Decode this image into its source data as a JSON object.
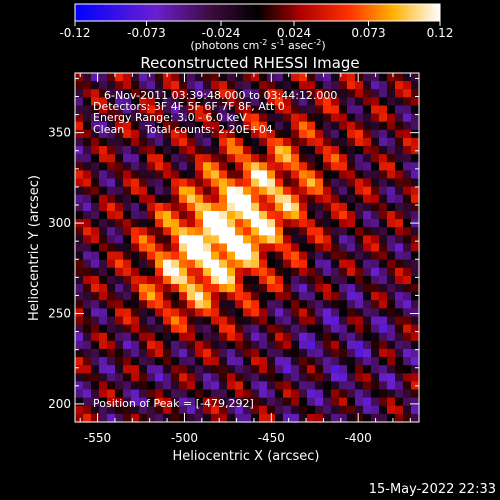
{
  "chart_data": {
    "type": "heatmap",
    "title": "Reconstructed RHESSI Image",
    "xlabel": "Heliocentric X (arcsec)",
    "ylabel": "Heliocentric Y (arcsec)",
    "xlim": [
      -563,
      -365
    ],
    "ylim": [
      190,
      383
    ],
    "x_ticks": [
      -550,
      -500,
      -450,
      -400
    ],
    "y_ticks": [
      200,
      250,
      300,
      350
    ],
    "x_tick_labels": [
      "-550",
      "-500",
      "-450",
      "-400"
    ],
    "y_tick_labels": [
      "200",
      "250",
      "300",
      "350"
    ],
    "colorbar": {
      "range": [
        -0.12,
        0.12
      ],
      "tick_values": [
        -0.12,
        -0.073,
        -0.024,
        0.024,
        0.073,
        0.12
      ],
      "tick_labels": [
        "-0.12",
        "-0.073",
        "-0.024",
        "0.024",
        "0.073",
        "0.12"
      ],
      "units_main": "(photons cm",
      "units_exp1": "-2",
      "units_mid": " s",
      "units_exp2": "-1",
      "units_end": " asec",
      "units_exp3": "-2",
      "units_close": ")",
      "colormap": "blue-purple-black-red-orange-yellow-white"
    },
    "peak": {
      "x": -479,
      "y": 292
    },
    "annotations": {
      "time": "6-Nov-2011 03:39:48.000 to 03:44:12.000",
      "detectors": "Detectors: 3F 4F 5F 6F 7F 8F, Att 0",
      "energy": "Energy Range: 3.0 - 6.0 keV",
      "clean": "Clean",
      "counts": "Total counts: 2.20E+04",
      "peak": "Position of Peak = [-479,292]"
    }
  },
  "timestamp": "15-May-2022 22:33"
}
